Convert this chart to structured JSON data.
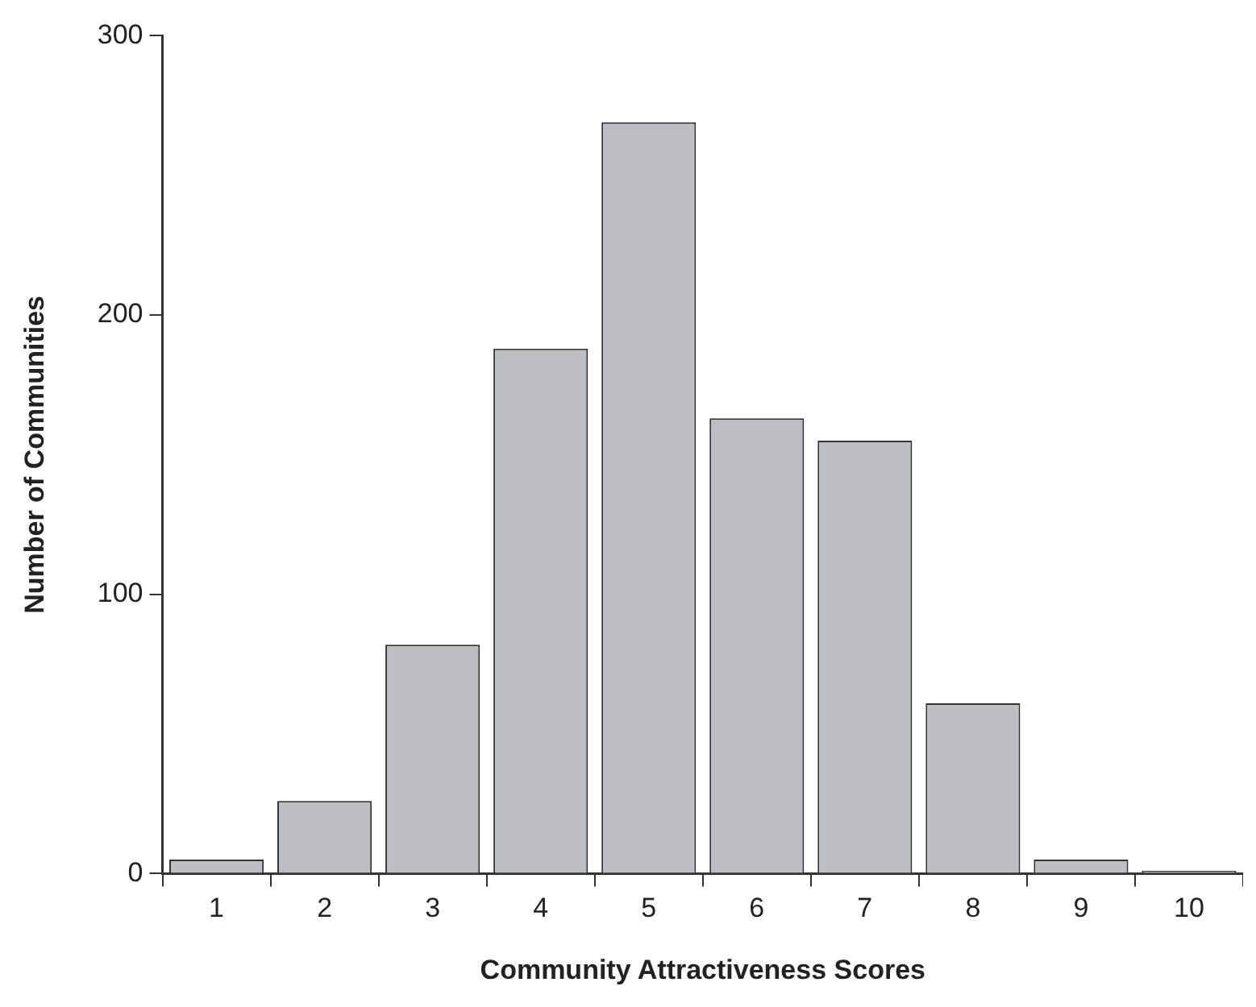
{
  "chart_data": {
    "type": "bar",
    "xlabel": "Community Attractiveness Scores",
    "ylabel": "Number of Communities",
    "categories": [
      "1",
      "2",
      "3",
      "4",
      "5",
      "6",
      "7",
      "8",
      "9",
      "10"
    ],
    "values": [
      5,
      26,
      82,
      188,
      269,
      163,
      155,
      61,
      5,
      1
    ],
    "color": "#bdbec2",
    "ylim": [
      0,
      300
    ],
    "yticks": [
      0,
      100,
      200,
      300
    ],
    "grid": false,
    "legend": false
  }
}
